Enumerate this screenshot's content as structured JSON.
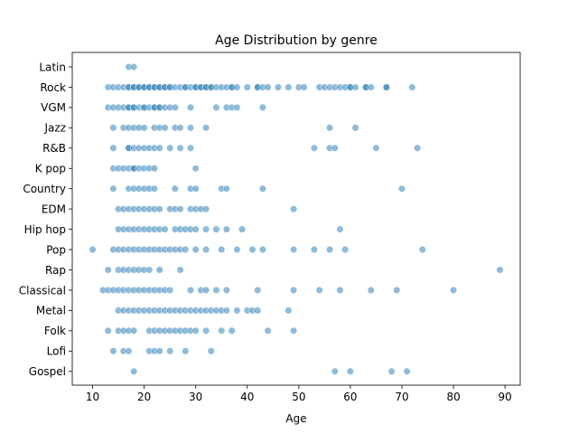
{
  "chart_data": {
    "type": "scatter",
    "title": "Age Distribution by genre",
    "xlabel": "Age",
    "ylabel": "",
    "xlim": [
      6.05,
      92.95
    ],
    "xticks": [
      10,
      20,
      30,
      40,
      50,
      60,
      70,
      80,
      90
    ],
    "categories": [
      "Latin",
      "Rock",
      "VGM",
      "Jazz",
      "R&B",
      "K pop",
      "Country",
      "EDM",
      "Hip hop",
      "Pop",
      "Rap",
      "Classical",
      "Metal",
      "Folk",
      "Lofi",
      "Gospel"
    ],
    "point_color": "#1f77b4",
    "point_alpha": 0.5,
    "grid": false,
    "series": [
      {
        "category": "Latin",
        "ages": [
          17,
          18
        ]
      },
      {
        "category": "Rock",
        "ages": [
          13,
          14,
          15,
          16,
          17,
          17,
          18,
          18,
          19,
          19,
          20,
          20,
          21,
          21,
          22,
          22,
          23,
          23,
          24,
          24,
          25,
          25,
          26,
          27,
          28,
          28,
          29,
          30,
          30,
          31,
          31,
          32,
          32,
          33,
          33,
          34,
          35,
          36,
          37,
          37,
          38,
          40,
          42,
          42,
          43,
          44,
          46,
          48,
          50,
          51,
          54,
          55,
          56,
          57,
          58,
          59,
          60,
          60,
          61,
          63,
          63,
          64,
          67,
          67,
          72
        ]
      },
      {
        "category": "VGM",
        "ages": [
          13,
          14,
          15,
          16,
          17,
          17,
          18,
          18,
          19,
          20,
          20,
          21,
          22,
          22,
          23,
          23,
          24,
          25,
          26,
          29,
          34,
          36,
          37,
          38,
          43
        ]
      },
      {
        "category": "Jazz",
        "ages": [
          14,
          16,
          17,
          18,
          19,
          20,
          22,
          23,
          24,
          26,
          27,
          29,
          32,
          56,
          61
        ]
      },
      {
        "category": "R&B",
        "ages": [
          14,
          17,
          17,
          18,
          19,
          20,
          21,
          22,
          23,
          25,
          27,
          29,
          53,
          56,
          57,
          65,
          73
        ]
      },
      {
        "category": "K pop",
        "ages": [
          14,
          15,
          16,
          17,
          18,
          18,
          19,
          20,
          21,
          22,
          30
        ]
      },
      {
        "category": "Country",
        "ages": [
          14,
          17,
          18,
          19,
          20,
          21,
          22,
          26,
          29,
          30,
          35,
          36,
          43,
          70
        ]
      },
      {
        "category": "EDM",
        "ages": [
          15,
          16,
          17,
          18,
          19,
          20,
          21,
          22,
          23,
          25,
          26,
          27,
          29,
          30,
          31,
          32,
          49
        ]
      },
      {
        "category": "Hip hop",
        "ages": [
          15,
          16,
          17,
          18,
          19,
          20,
          21,
          22,
          23,
          24,
          26,
          27,
          28,
          29,
          30,
          32,
          34,
          36,
          39,
          58
        ]
      },
      {
        "category": "Pop",
        "ages": [
          10,
          14,
          15,
          16,
          17,
          18,
          19,
          20,
          21,
          22,
          23,
          24,
          25,
          26,
          27,
          28,
          30,
          32,
          35,
          38,
          41,
          43,
          49,
          53,
          56,
          59,
          74
        ]
      },
      {
        "category": "Rap",
        "ages": [
          13,
          15,
          16,
          17,
          18,
          19,
          20,
          21,
          23,
          27,
          89
        ]
      },
      {
        "category": "Classical",
        "ages": [
          12,
          13,
          14,
          15,
          16,
          17,
          18,
          19,
          20,
          21,
          22,
          23,
          24,
          25,
          29,
          31,
          32,
          34,
          36,
          42,
          49,
          54,
          58,
          64,
          69,
          80
        ]
      },
      {
        "category": "Metal",
        "ages": [
          15,
          16,
          17,
          18,
          19,
          20,
          21,
          22,
          23,
          24,
          25,
          26,
          27,
          28,
          29,
          30,
          31,
          32,
          33,
          34,
          35,
          36,
          38,
          40,
          41,
          42,
          48
        ]
      },
      {
        "category": "Folk",
        "ages": [
          13,
          15,
          16,
          17,
          18,
          21,
          22,
          23,
          24,
          25,
          26,
          27,
          28,
          29,
          30,
          32,
          35,
          37,
          44,
          49
        ]
      },
      {
        "category": "Lofi",
        "ages": [
          14,
          16,
          17,
          21,
          22,
          23,
          25,
          28,
          33
        ]
      },
      {
        "category": "Gospel",
        "ages": [
          18,
          57,
          60,
          68,
          71
        ]
      }
    ]
  }
}
